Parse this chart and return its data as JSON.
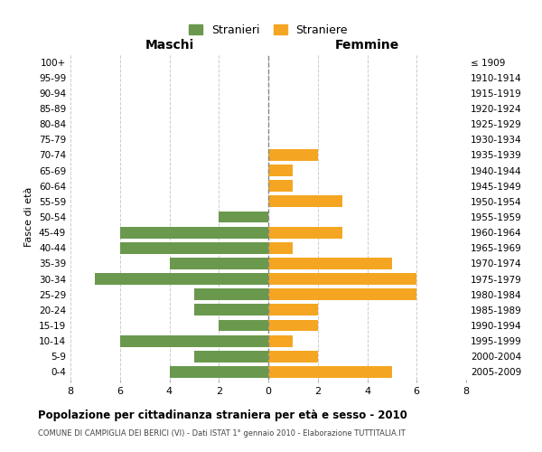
{
  "age_groups": [
    "100+",
    "95-99",
    "90-94",
    "85-89",
    "80-84",
    "75-79",
    "70-74",
    "65-69",
    "60-64",
    "55-59",
    "50-54",
    "45-49",
    "40-44",
    "35-39",
    "30-34",
    "25-29",
    "20-24",
    "15-19",
    "10-14",
    "5-9",
    "0-4"
  ],
  "birth_years": [
    "≤ 1909",
    "1910-1914",
    "1915-1919",
    "1920-1924",
    "1925-1929",
    "1930-1934",
    "1935-1939",
    "1940-1944",
    "1945-1949",
    "1950-1954",
    "1955-1959",
    "1960-1964",
    "1965-1969",
    "1970-1974",
    "1975-1979",
    "1980-1984",
    "1985-1989",
    "1990-1994",
    "1995-1999",
    "2000-2004",
    "2005-2009"
  ],
  "maschi": [
    0,
    0,
    0,
    0,
    0,
    0,
    0,
    0,
    0,
    0,
    2,
    6,
    6,
    4,
    7,
    3,
    3,
    2,
    6,
    3,
    4
  ],
  "femmine": [
    0,
    0,
    0,
    0,
    0,
    0,
    2,
    1,
    1,
    3,
    0,
    3,
    1,
    5,
    6,
    6,
    2,
    2,
    1,
    2,
    5
  ],
  "maschi_color": "#6a994e",
  "femmine_color": "#f4a622",
  "title": "Popolazione per cittadinanza straniera per età e sesso - 2010",
  "subtitle": "COMUNE DI CAMPIGLIA DEI BERICI (VI) - Dati ISTAT 1° gennaio 2010 - Elaborazione TUTTITALIA.IT",
  "legend_maschi": "Stranieri",
  "legend_femmine": "Straniere",
  "xlabel_left": "Maschi",
  "xlabel_right": "Femmine",
  "ylabel_left": "Fasce di età",
  "xlim": 8,
  "background_color": "#ffffff",
  "grid_color": "#cccccc"
}
